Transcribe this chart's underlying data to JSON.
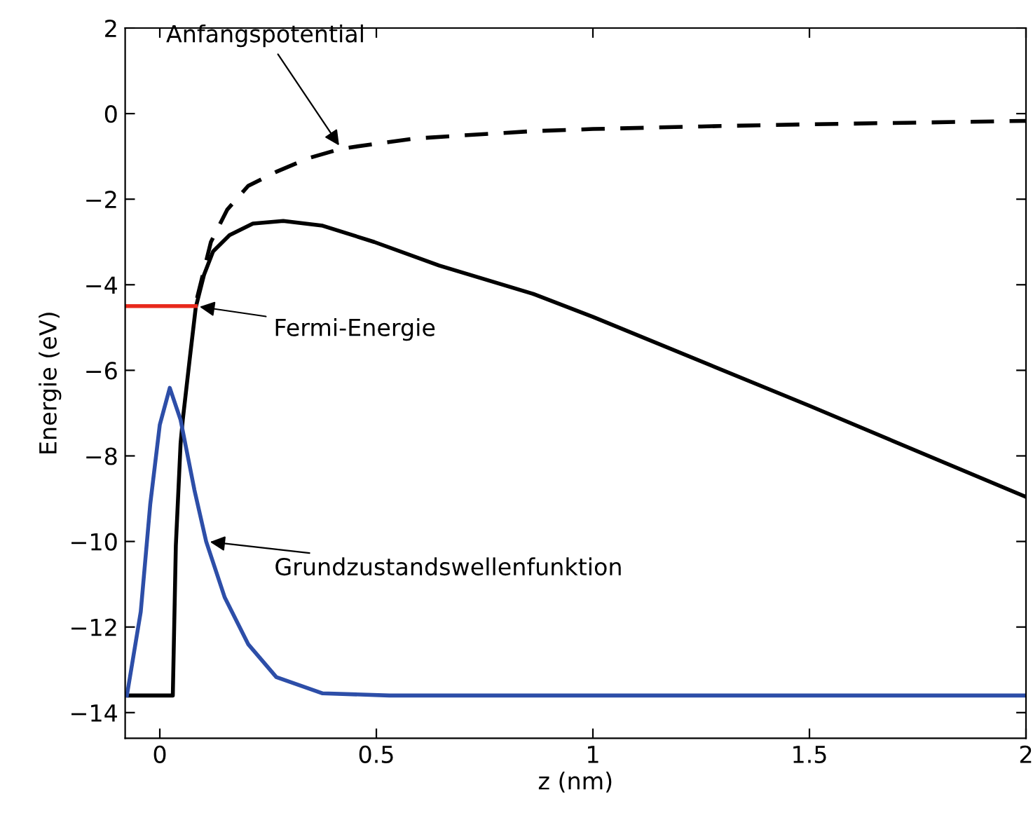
{
  "chart_data": {
    "type": "line",
    "xlabel": "z (nm)",
    "ylabel": "Energie (eV)",
    "xlim": [
      -0.08,
      2
    ],
    "ylim": [
      -14.6,
      2
    ],
    "xticks": [
      0,
      0.5,
      1,
      1.5,
      2
    ],
    "yticks": [
      {
        "value": -14,
        "label": "−14"
      },
      {
        "value": -12,
        "label": "−12"
      },
      {
        "value": -10,
        "label": "−10"
      },
      {
        "value": -8,
        "label": "−8"
      },
      {
        "value": -6,
        "label": "−6"
      },
      {
        "value": -4,
        "label": "−4"
      },
      {
        "value": -2,
        "label": "−2"
      },
      0,
      2
    ],
    "grid": false,
    "legend": false,
    "marker": "none",
    "series": [
      {
        "color": "#000000",
        "line_style": "dashed",
        "x": [
          0.086,
          0.118,
          0.156,
          0.204,
          0.269,
          0.344,
          0.419,
          0.495,
          0.592,
          0.731,
          0.861,
          1.0,
          1.25,
          1.5,
          1.75,
          2.0
        ],
        "values": [
          -4.31,
          -3.0,
          -2.24,
          -1.69,
          -1.36,
          -1.04,
          -0.82,
          -0.71,
          -0.58,
          -0.49,
          -0.41,
          -0.36,
          -0.3,
          -0.25,
          -0.21,
          -0.17
        ]
      },
      {
        "color": "#000000",
        "line_style": "solid",
        "x": [
          -0.08,
          0.03,
          0.037,
          0.048,
          0.053,
          0.069,
          0.083,
          0.102,
          0.123,
          0.161,
          0.215,
          0.285,
          0.376,
          0.495,
          0.645,
          0.861,
          1.0,
          1.5,
          2.0
        ],
        "values": [
          -13.6,
          -13.6,
          -10.1,
          -7.7,
          -7.16,
          -5.74,
          -4.53,
          -3.77,
          -3.22,
          -2.84,
          -2.57,
          -2.51,
          -2.62,
          -3.0,
          -3.55,
          -4.21,
          -4.75,
          -6.83,
          -8.96
        ]
      },
      {
        "color": "#e8291c",
        "line_style": "solid",
        "x": [
          -0.08,
          0.083
        ],
        "values": [
          -4.5,
          -4.5
        ]
      },
      {
        "color": "#2d4ea8",
        "line_style": "solid",
        "x": [
          -0.076,
          -0.044,
          -0.022,
          0.0,
          0.023,
          0.048,
          0.08,
          0.107,
          0.15,
          0.204,
          0.269,
          0.376,
          0.53,
          1.0,
          2.0
        ],
        "values": [
          -13.6,
          -11.64,
          -9.12,
          -7.27,
          -6.41,
          -7.16,
          -8.8,
          -10.0,
          -11.31,
          -12.4,
          -13.17,
          -13.55,
          -13.6,
          -13.6,
          -13.6
        ]
      }
    ],
    "annotations": [
      {
        "text": "Anfangspotential",
        "x": 0.419,
        "y": -0.82
      },
      {
        "text": "Fermi-Energie",
        "x": 0.083,
        "y": -4.5
      },
      {
        "text": "Grundzustandswellenfunktion",
        "x": 0.107,
        "y": -10.0
      }
    ]
  }
}
